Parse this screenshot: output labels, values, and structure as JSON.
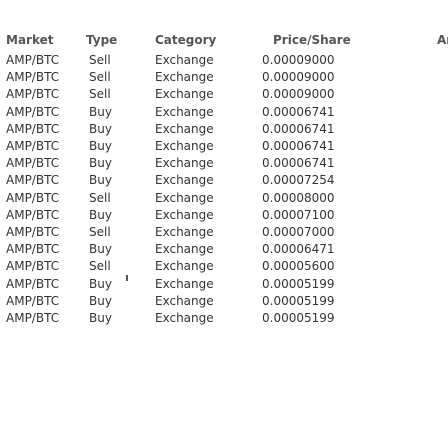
{
  "columns": {
    "market": "Market",
    "type": "Type",
    "category": "Category",
    "price": "Price/Share",
    "amount": "Ar"
  },
  "rows": [
    {
      "market": "AMP/BTC",
      "type": "Sell",
      "category": "Exchange",
      "price": "0.00009000"
    },
    {
      "market": "AMP/BTC",
      "type": "Sell",
      "category": "Exchange",
      "price": "0.00009000"
    },
    {
      "market": "AMP/BTC",
      "type": "Sell",
      "category": "Exchange",
      "price": "0.00009000"
    },
    {
      "market": "AMP/BTC",
      "type": "Buy",
      "category": "Exchange",
      "price": "0.00006741"
    },
    {
      "market": "AMP/BTC",
      "type": "Buy",
      "category": "Exchange",
      "price": "0.00006741"
    },
    {
      "market": "AMP/BTC",
      "type": "Buy",
      "category": "Exchange",
      "price": "0.00006741"
    },
    {
      "market": "AMP/BTC",
      "type": "Buy",
      "category": "Exchange",
      "price": "0.00006741"
    },
    {
      "market": "AMP/BTC",
      "type": "Buy",
      "category": "Exchange",
      "price": "0.00007254"
    },
    {
      "market": "AMP/BTC",
      "type": "Sell",
      "category": "Exchange",
      "price": "0.00008000"
    },
    {
      "market": "AMP/BTC",
      "type": "Buy",
      "category": "Exchange",
      "price": "0.00007100"
    },
    {
      "market": "AMP/BTC",
      "type": "Sell",
      "category": "Exchange",
      "price": "0.00007000"
    },
    {
      "market": "AMP/BTC",
      "type": "Buy",
      "category": "Exchange",
      "price": "0.00006471"
    },
    {
      "market": "AMP/BTC",
      "type": "Sell",
      "category": "Exchange",
      "price": "0.00005600"
    },
    {
      "market": "AMP/BTC",
      "type": "Buy",
      "category": "Exchange",
      "price": "0.00005199"
    },
    {
      "market": "AMP/BTC",
      "type": "Buy",
      "category": "Exchange",
      "price": "0.00005199"
    },
    {
      "market": "AMP/BTC",
      "type": "Buy",
      "category": "Exchange",
      "price": "0.00005199"
    }
  ]
}
